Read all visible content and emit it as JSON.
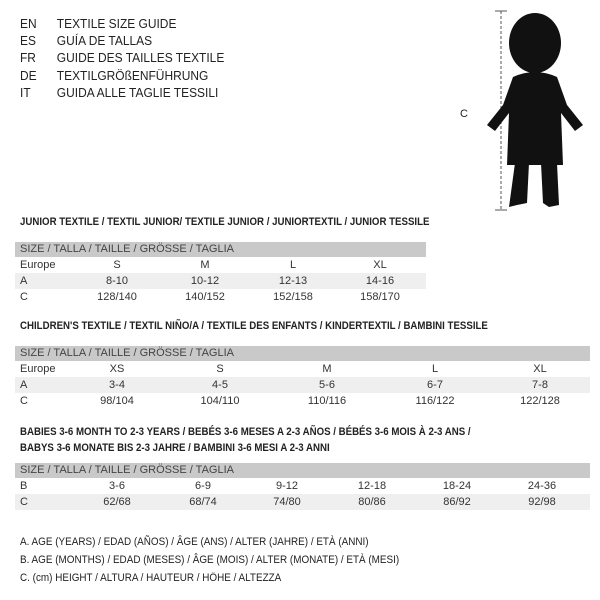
{
  "languages": [
    {
      "code": "EN",
      "title": "TEXTILE SIZE GUIDE"
    },
    {
      "code": "ES",
      "title": "GUÍA DE TALLAS"
    },
    {
      "code": "FR",
      "title": "GUIDE DES TAILLES TEXTILE"
    },
    {
      "code": "DE",
      "title": "TEXTILGRÖßENFÜHRUNG"
    },
    {
      "code": "IT",
      "title": "GUIDA ALLE TAGLIE TESSILI"
    }
  ],
  "figure_label": "C",
  "size_header": "SIZE / TALLA / TAILLE / GRÖSSE / TAGLIA",
  "junior": {
    "heading": "JUNIOR TEXTILE / TEXTIL JUNIOR/ TEXTILE JUNIOR / JUNIORTEXTIL / JUNIOR TESSILE",
    "rows": [
      {
        "label": "Europe",
        "cells": [
          "S",
          "M",
          "L",
          "XL"
        ]
      },
      {
        "label": "A",
        "cells": [
          "8-10",
          "10-12",
          "12-13",
          "14-16"
        ]
      },
      {
        "label": "C",
        "cells": [
          "128/140",
          "140/152",
          "152/158",
          "158/170"
        ]
      }
    ]
  },
  "children": {
    "heading": "CHILDREN'S TEXTILE / TEXTIL NIÑO/A / TEXTILE DES ENFANTS / KINDERTEXTIL / BAMBINI TESSILE",
    "rows": [
      {
        "label": "Europe",
        "cells": [
          "XS",
          "S",
          "M",
          "L",
          "XL"
        ]
      },
      {
        "label": "A",
        "cells": [
          "3-4",
          "4-5",
          "5-6",
          "6-7",
          "7-8"
        ]
      },
      {
        "label": "C",
        "cells": [
          "98/104",
          "104/110",
          "110/116",
          "116/122",
          "122/128"
        ]
      }
    ]
  },
  "babies": {
    "heading_line1": "BABIES 3-6 MONTH TO 2-3 YEARS / BEBÉS 3-6 MESES A 2-3 AÑOS / BÉBÉS 3-6 MOIS À 2-3 ANS /",
    "heading_line2": "BABYS 3-6 MONATE BIS 2-3 JAHRE / BAMBINI 3-6 MESI A 2-3 ANNI",
    "rows": [
      {
        "label": "B",
        "cells": [
          "3-6",
          "6-9",
          "9-12",
          "12-18",
          "18-24",
          "24-36"
        ]
      },
      {
        "label": "C",
        "cells": [
          "62/68",
          "68/74",
          "74/80",
          "80/86",
          "86/92",
          "92/98"
        ]
      }
    ]
  },
  "legend": [
    "A. AGE (YEARS) / EDAD (AÑOS) / ÂGE (ANS) / ALTER (JAHRE) / ETÀ (ANNI)",
    "B. AGE (MONTHS) / EDAD (MESES) / ÂGE (MOIS) / ALTER (MONATE) / ETÀ (MESI)",
    "C. (cm) HEIGHT / ALTURA / HAUTEUR / HÖHE / ALTEZZA"
  ]
}
